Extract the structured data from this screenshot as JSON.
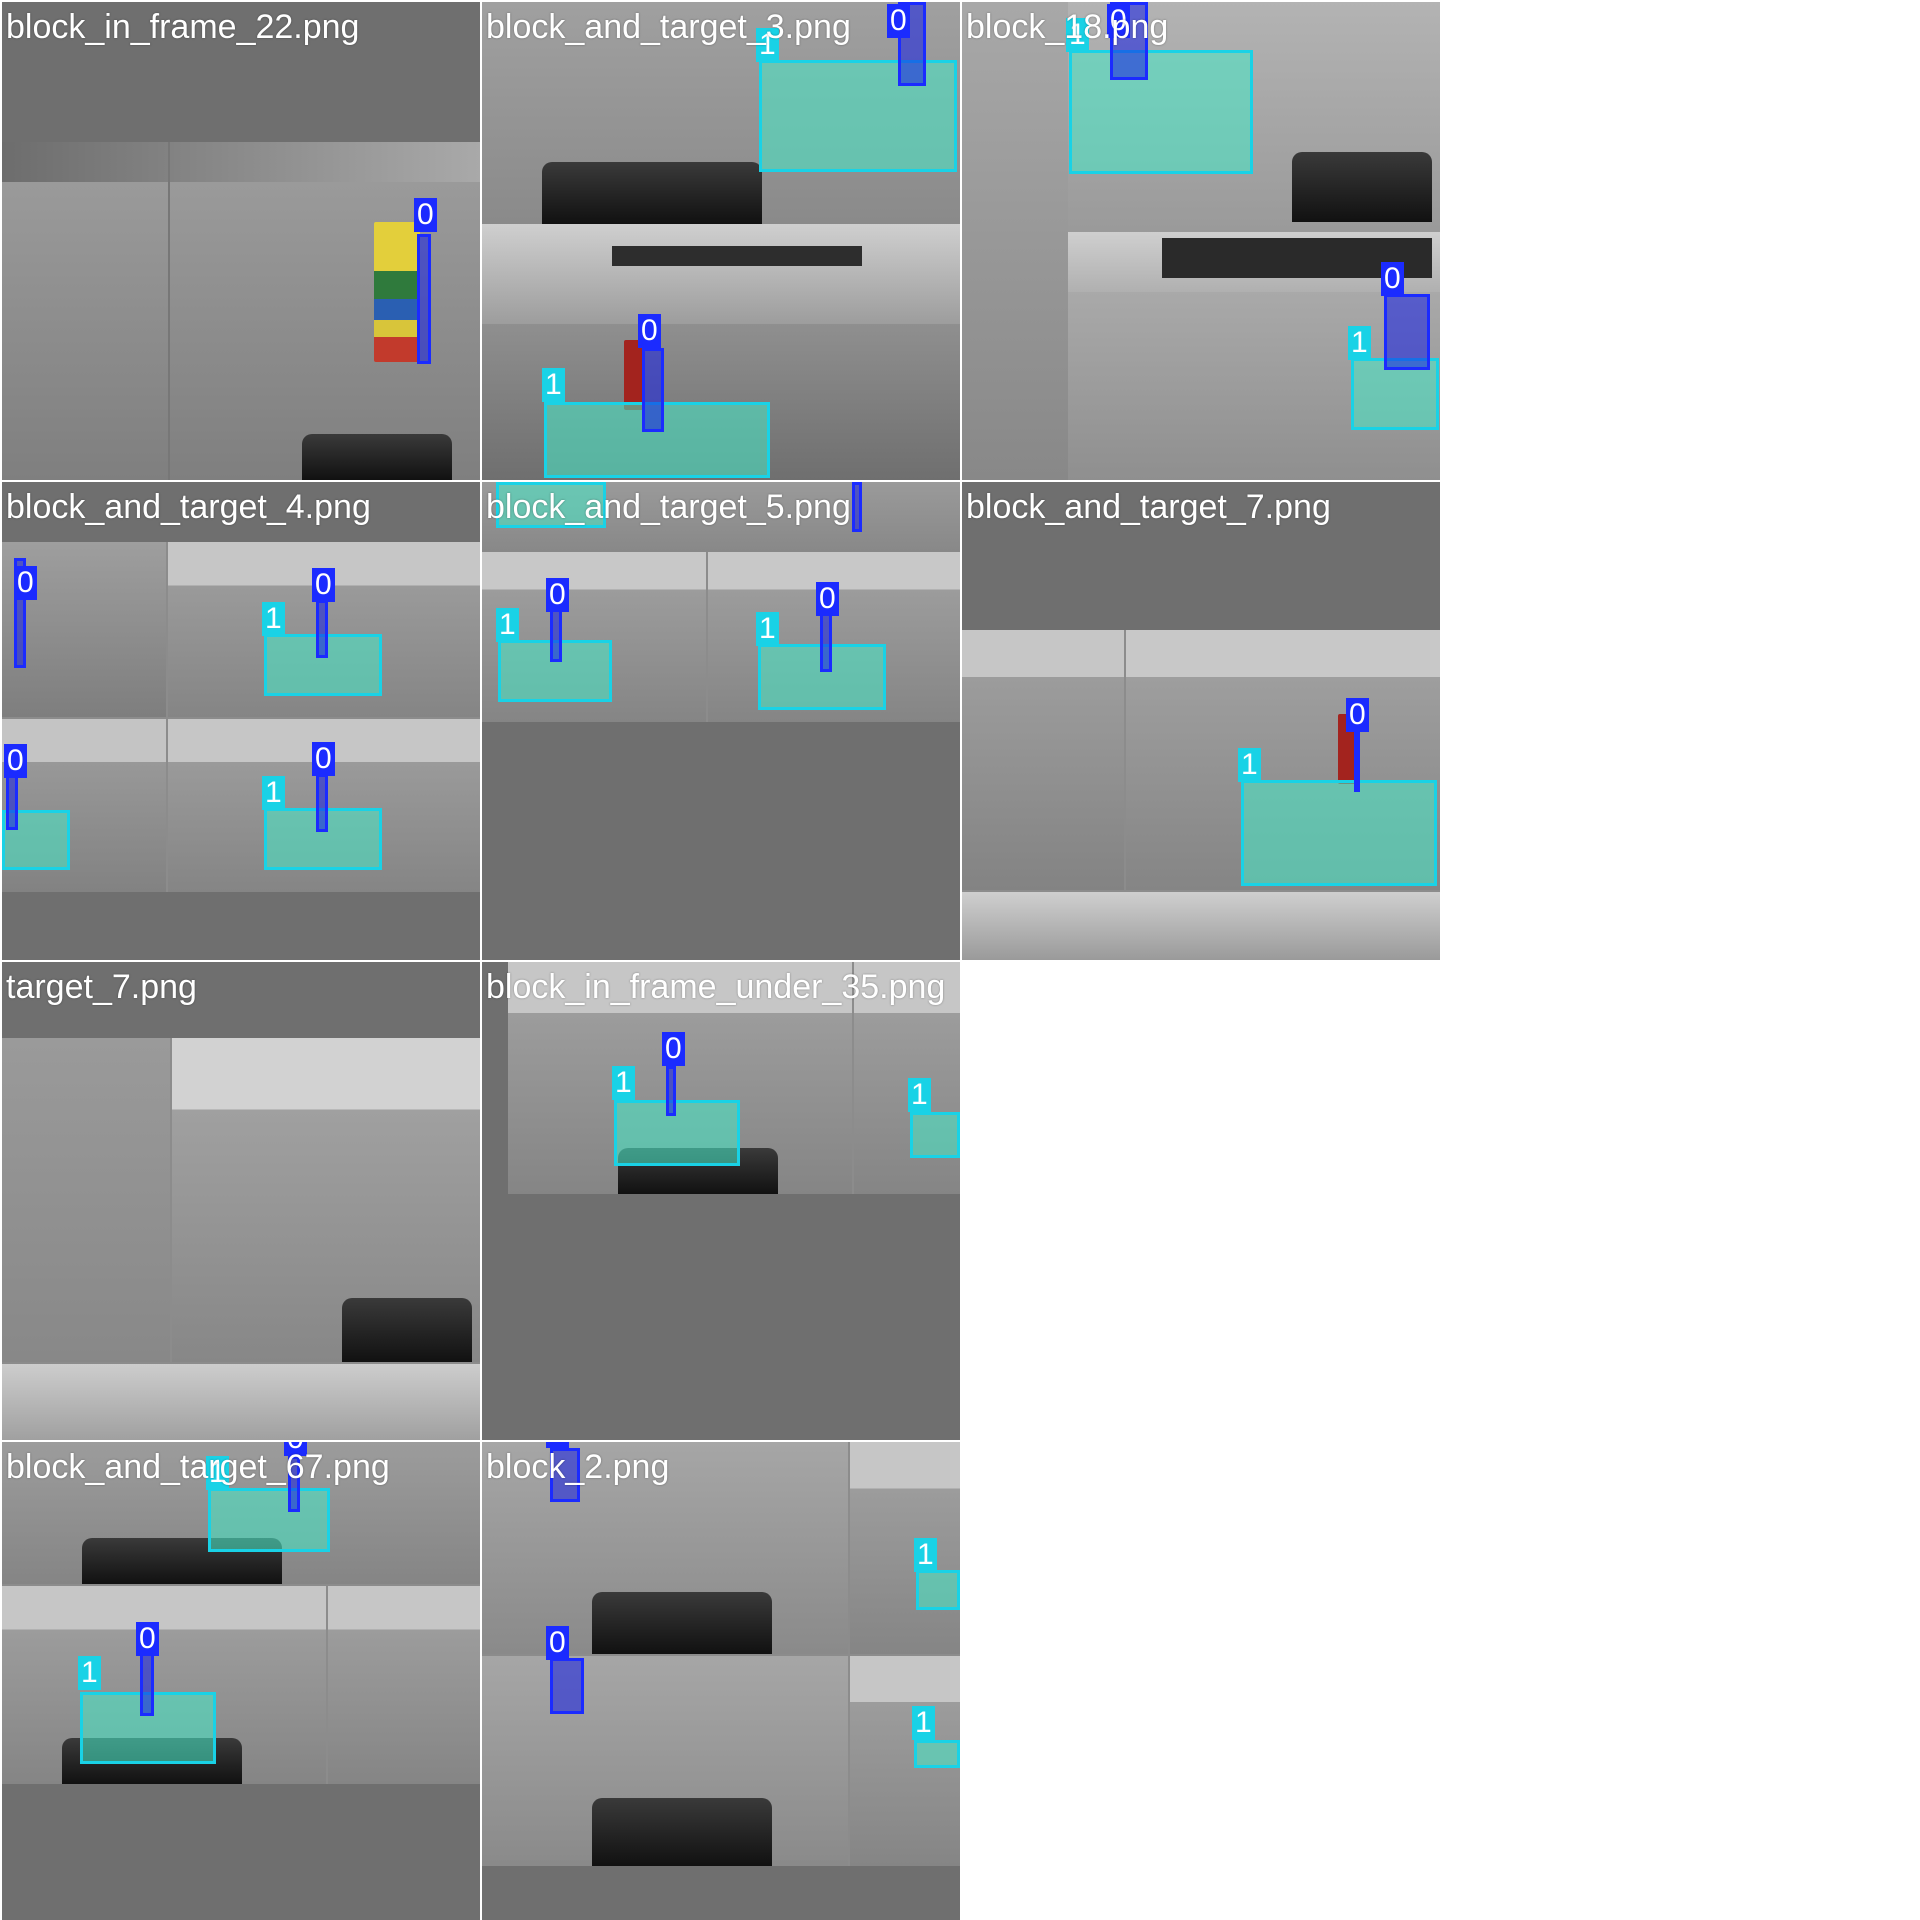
{
  "grid": {
    "tiles": [
      {
        "caption": "block_in_frame_22.png"
      },
      {
        "caption": "block_and_target_3.png"
      },
      {
        "caption": "block_18.png"
      },
      {
        "caption": "block_and_target_4.png"
      },
      {
        "caption": "block_and_target_5.png"
      },
      {
        "caption": "block_and_target_7.png"
      },
      {
        "caption": "target_7.png"
      },
      {
        "caption": "block_in_frame_under_35.png"
      },
      {
        "caption": "block_and_target_67.png"
      },
      {
        "caption": "block_2.png"
      }
    ]
  },
  "classes": {
    "block": {
      "id": "0",
      "color": "#1b2bff"
    },
    "target": {
      "id": "1",
      "color": "#19d2e6"
    }
  },
  "colors": {
    "tile_background": "#6f6f6f",
    "page_background": "#ffffff",
    "floor": "#8d8d8d",
    "wall": "#c9c9c9"
  }
}
